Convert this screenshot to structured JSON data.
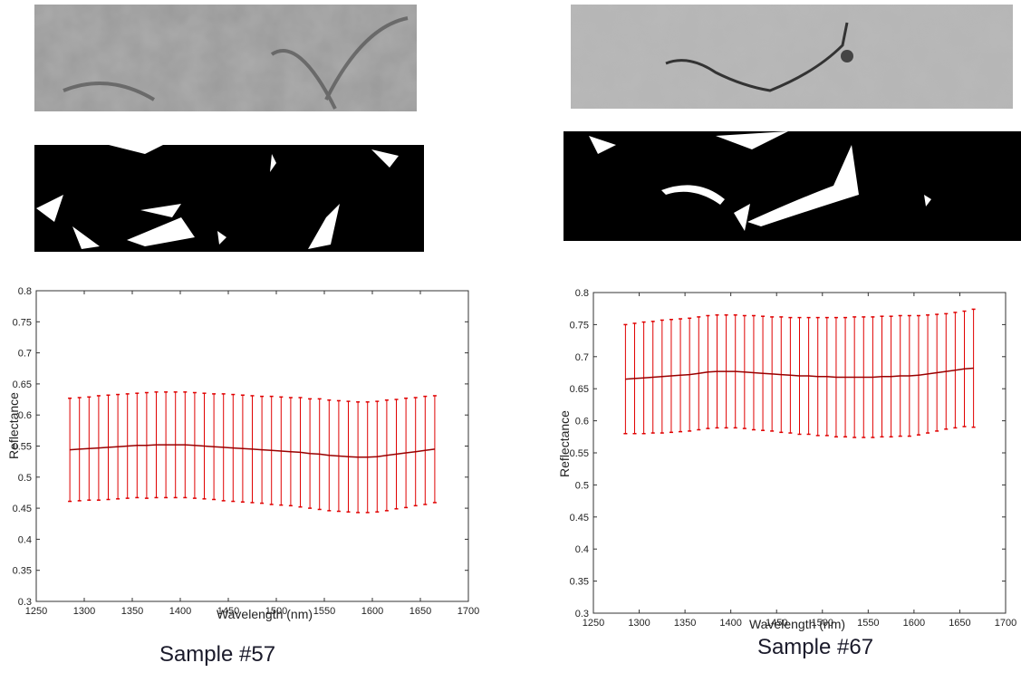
{
  "chart_data": [
    {
      "type": "errorbar",
      "color": "#e00000",
      "xlabel": "Wavelength (nm)",
      "ylabel": "Reflectance",
      "caption": "Sample #57",
      "x": [
        1285,
        1295,
        1305,
        1315,
        1325,
        1335,
        1345,
        1355,
        1365,
        1375,
        1385,
        1395,
        1405,
        1415,
        1425,
        1435,
        1445,
        1455,
        1465,
        1475,
        1485,
        1495,
        1505,
        1515,
        1525,
        1535,
        1545,
        1555,
        1565,
        1575,
        1585,
        1595,
        1605,
        1615,
        1625,
        1635,
        1645,
        1655,
        1665
      ],
      "values": [
        0.544,
        0.545,
        0.546,
        0.547,
        0.548,
        0.549,
        0.55,
        0.551,
        0.551,
        0.552,
        0.552,
        0.552,
        0.552,
        0.551,
        0.55,
        0.549,
        0.548,
        0.547,
        0.546,
        0.545,
        0.544,
        0.543,
        0.542,
        0.541,
        0.54,
        0.538,
        0.537,
        0.535,
        0.534,
        0.533,
        0.532,
        0.532,
        0.533,
        0.535,
        0.537,
        0.539,
        0.541,
        0.543,
        0.545
      ],
      "errors": [
        0.083,
        0.083,
        0.083,
        0.084,
        0.084,
        0.084,
        0.084,
        0.084,
        0.085,
        0.085,
        0.085,
        0.085,
        0.085,
        0.085,
        0.085,
        0.085,
        0.086,
        0.086,
        0.086,
        0.086,
        0.086,
        0.087,
        0.087,
        0.087,
        0.088,
        0.088,
        0.089,
        0.089,
        0.089,
        0.089,
        0.089,
        0.089,
        0.089,
        0.089,
        0.088,
        0.088,
        0.087,
        0.087,
        0.086
      ],
      "xlim": [
        1250,
        1700
      ],
      "xticks": [
        1250,
        1300,
        1350,
        1400,
        1450,
        1500,
        1550,
        1600,
        1650,
        1700
      ],
      "ylim": [
        0.3,
        0.8
      ],
      "yticks": [
        0.3,
        0.35,
        0.4,
        0.45,
        0.5,
        0.55,
        0.6,
        0.65,
        0.7,
        0.75,
        0.8
      ]
    },
    {
      "type": "errorbar",
      "color": "#e00000",
      "xlabel": "Wavelength (nm)",
      "ylabel": "Reflectance",
      "caption": "Sample #67",
      "x": [
        1285,
        1295,
        1305,
        1315,
        1325,
        1335,
        1345,
        1355,
        1365,
        1375,
        1385,
        1395,
        1405,
        1415,
        1425,
        1435,
        1445,
        1455,
        1465,
        1475,
        1485,
        1495,
        1505,
        1515,
        1525,
        1535,
        1545,
        1555,
        1565,
        1575,
        1585,
        1595,
        1605,
        1615,
        1625,
        1635,
        1645,
        1655,
        1665
      ],
      "values": [
        0.665,
        0.666,
        0.667,
        0.668,
        0.669,
        0.67,
        0.671,
        0.672,
        0.674,
        0.676,
        0.677,
        0.677,
        0.677,
        0.676,
        0.675,
        0.674,
        0.673,
        0.672,
        0.671,
        0.67,
        0.67,
        0.669,
        0.669,
        0.668,
        0.668,
        0.668,
        0.668,
        0.668,
        0.669,
        0.669,
        0.67,
        0.67,
        0.671,
        0.673,
        0.675,
        0.677,
        0.679,
        0.681,
        0.682
      ],
      "errors": [
        0.085,
        0.086,
        0.087,
        0.087,
        0.088,
        0.088,
        0.088,
        0.088,
        0.088,
        0.088,
        0.088,
        0.088,
        0.088,
        0.088,
        0.089,
        0.089,
        0.089,
        0.09,
        0.09,
        0.091,
        0.091,
        0.092,
        0.092,
        0.093,
        0.093,
        0.094,
        0.094,
        0.094,
        0.094,
        0.094,
        0.094,
        0.094,
        0.093,
        0.092,
        0.091,
        0.09,
        0.09,
        0.09,
        0.092
      ],
      "xlim": [
        1250,
        1700
      ],
      "xticks": [
        1250,
        1300,
        1350,
        1400,
        1450,
        1500,
        1550,
        1600,
        1650,
        1700
      ],
      "ylim": [
        0.3,
        0.8
      ],
      "yticks": [
        0.3,
        0.35,
        0.4,
        0.45,
        0.5,
        0.55,
        0.6,
        0.65,
        0.7,
        0.75,
        0.8
      ]
    }
  ]
}
